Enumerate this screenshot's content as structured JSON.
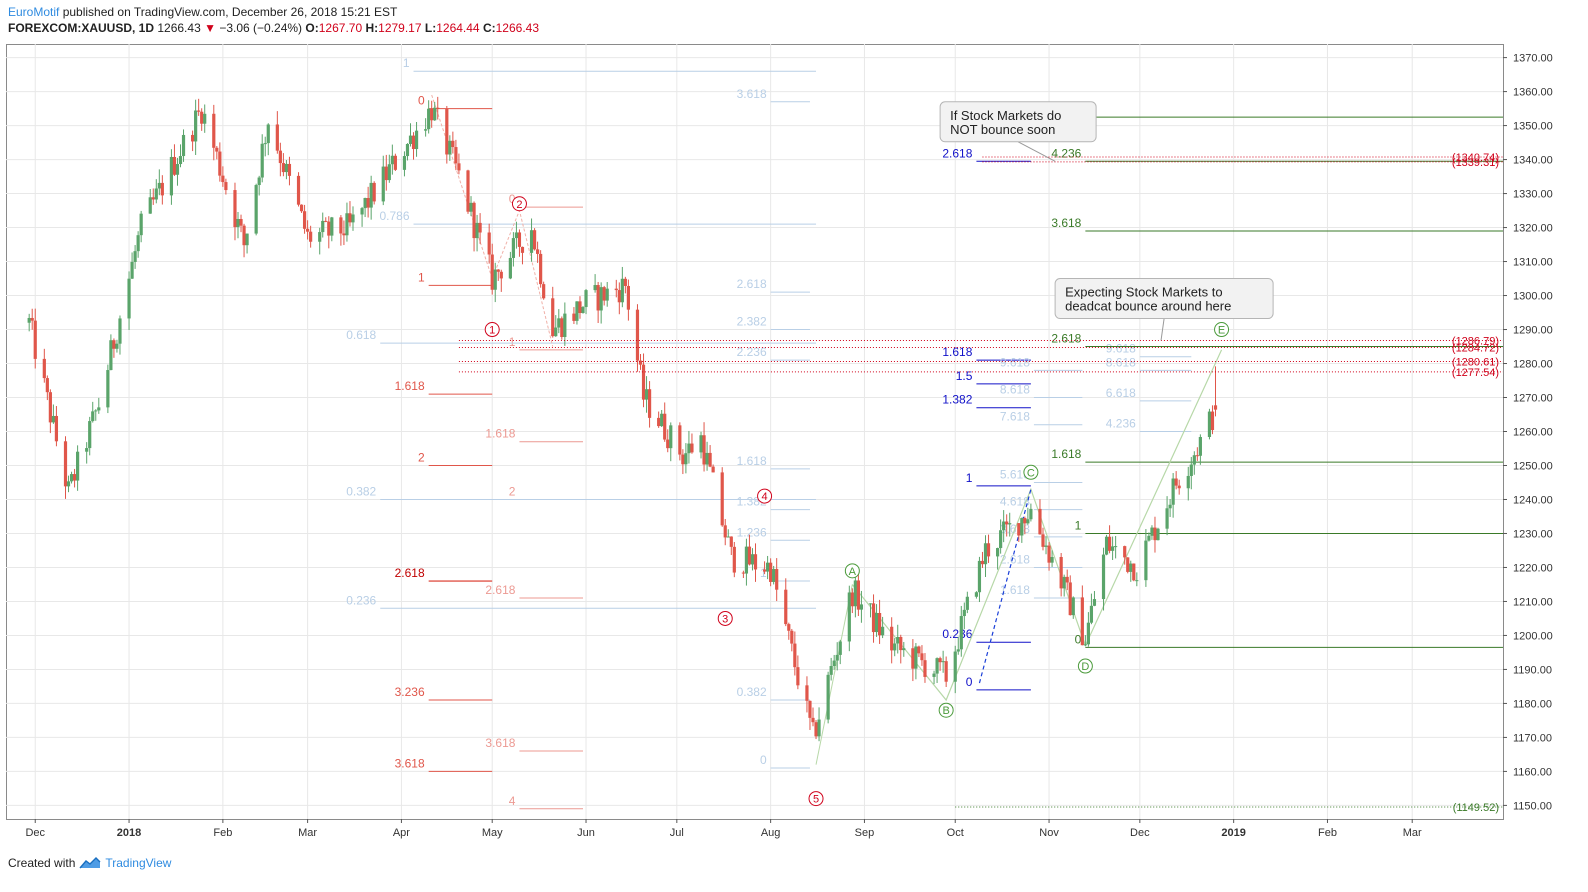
{
  "header": {
    "brand": "EuroMotif",
    "published": "published on TradingView.com, December 26, 2018 15:21 EST",
    "symbol": "FOREXCOM:XAUUSD, 1D",
    "last": "1266.43",
    "change_arrow": "▼",
    "change": "−3.06 (−0.24%)",
    "o_label": "O:",
    "o": "1267.70",
    "h_label": "H:",
    "h": "1279.17",
    "l_label": "L:",
    "l": "1264.44",
    "c_label": "C:",
    "c": "1266.43"
  },
  "footer": {
    "created_with": "Created with",
    "tv": "TradingView",
    "logo_icon": "tradingview-logo-icon"
  },
  "colors": {
    "up": "#5aa46a",
    "down": "#e0564a",
    "wave_red": "#e0564a",
    "fib_blue": "#1010c8",
    "fib_green": "#3a7a28",
    "fib_light": "#b9cfe6",
    "grid": "#e8e8e8"
  },
  "annotations": {
    "callout1": [
      "If Stock Markets do",
      "NOT bounce soon"
    ],
    "callout2": [
      "Expecting Stock Markets to",
      "deadcat bounce around here"
    ]
  },
  "chart_data": {
    "type": "candlestick",
    "symbol": "FOREXCOM:XAUUSD",
    "timeframe": "1D",
    "ylim": [
      1146,
      1374
    ],
    "x_tick_labels": [
      "Dec",
      "2018",
      "Feb",
      "Mar",
      "Apr",
      "May",
      "Jun",
      "Jul",
      "Aug",
      "Sep",
      "Oct",
      "Nov",
      "Dec",
      "2019",
      "Feb",
      "Mar"
    ],
    "y_tick_labels": [
      "1150.00",
      "1160.00",
      "1170.00",
      "1180.00",
      "1190.00",
      "1200.00",
      "1210.00",
      "1220.00",
      "1230.00",
      "1240.00",
      "1250.00",
      "1260.00",
      "1270.00",
      "1280.00",
      "1290.00",
      "1300.00",
      "1310.00",
      "1320.00",
      "1330.00",
      "1340.00",
      "1350.00",
      "1360.00",
      "1370.00"
    ],
    "price_waypoints": [
      {
        "date": "2017-11-29",
        "close": 1292
      },
      {
        "date": "2017-12-12",
        "close": 1242
      },
      {
        "date": "2017-12-22",
        "close": 1268
      },
      {
        "date": "2018-01-05",
        "close": 1320
      },
      {
        "date": "2018-01-25",
        "close": 1355
      },
      {
        "date": "2018-02-08",
        "close": 1315
      },
      {
        "date": "2018-02-16",
        "close": 1352
      },
      {
        "date": "2018-03-01",
        "close": 1317
      },
      {
        "date": "2018-03-15",
        "close": 1320
      },
      {
        "date": "2018-04-11",
        "close": 1355
      },
      {
        "date": "2018-04-20",
        "close": 1335
      },
      {
        "date": "2018-05-01",
        "close": 1305
      },
      {
        "date": "2018-05-14",
        "close": 1320
      },
      {
        "date": "2018-05-21",
        "close": 1290
      },
      {
        "date": "2018-06-01",
        "close": 1298
      },
      {
        "date": "2018-06-14",
        "close": 1303
      },
      {
        "date": "2018-06-20",
        "close": 1270
      },
      {
        "date": "2018-07-03",
        "close": 1253
      },
      {
        "date": "2018-07-09",
        "close": 1258
      },
      {
        "date": "2018-07-19",
        "close": 1223
      },
      {
        "date": "2018-08-01",
        "close": 1220
      },
      {
        "date": "2018-08-15",
        "close": 1170
      },
      {
        "date": "2018-08-28",
        "close": 1213
      },
      {
        "date": "2018-09-10",
        "close": 1197
      },
      {
        "date": "2018-09-28",
        "close": 1188
      },
      {
        "date": "2018-10-11",
        "close": 1225
      },
      {
        "date": "2018-10-26",
        "close": 1237
      },
      {
        "date": "2018-11-13",
        "close": 1199
      },
      {
        "date": "2018-11-20",
        "close": 1227
      },
      {
        "date": "2018-11-30",
        "close": 1220
      },
      {
        "date": "2018-12-13",
        "close": 1245
      },
      {
        "date": "2018-12-21",
        "close": 1257
      },
      {
        "date": "2018-12-26",
        "close": 1266.43
      }
    ],
    "last_bar": {
      "date": "2018-12-26",
      "open": 1267.7,
      "high": 1279.17,
      "low": 1264.44,
      "close": 1266.43
    },
    "wave_labels": [
      {
        "label": "1",
        "date": "2018-05-01",
        "price": 1290
      },
      {
        "label": "2",
        "date": "2018-05-10",
        "price": 1327
      },
      {
        "label": "3",
        "date": "2018-07-17",
        "price": 1205
      },
      {
        "label": "4",
        "date": "2018-07-30",
        "price": 1241
      },
      {
        "label": "5",
        "date": "2018-08-16",
        "price": 1152
      },
      {
        "label": "A",
        "date": "2018-08-28",
        "price": 1219
      },
      {
        "label": "B",
        "date": "2018-09-28",
        "price": 1178
      },
      {
        "label": "C",
        "date": "2018-10-26",
        "price": 1248
      },
      {
        "label": "D",
        "date": "2018-11-13",
        "price": 1191
      },
      {
        "label": "E",
        "date": "2018-12-28",
        "price": 1290
      }
    ],
    "price_levels": [
      {
        "value": "(1340.74)",
        "price": 1340.74
      },
      {
        "value": "(1339.31)",
        "price": 1339.31
      },
      {
        "value": "(1286.79)",
        "price": 1286.79
      },
      {
        "value": "(1284.72)",
        "price": 1284.72
      },
      {
        "value": "(1280.61)",
        "price": 1280.61
      },
      {
        "value": "(1277.54)",
        "price": 1277.54
      },
      {
        "value": "(1149.52)",
        "price": 1149.52
      }
    ],
    "fib_sets": [
      {
        "color": "wave_red",
        "levels": [
          {
            "label": "0",
            "price": 1355,
            "from": "2018-04-10",
            "to": "2018-05-01"
          },
          {
            "label": "1",
            "price": 1303,
            "from": "2018-04-10",
            "to": "2018-05-01"
          },
          {
            "label": "1.618",
            "price": 1271,
            "from": "2018-04-10",
            "to": "2018-05-01"
          },
          {
            "label": "2",
            "price": 1250,
            "from": "2018-04-10",
            "to": "2018-05-01"
          },
          {
            "label": "2.618",
            "price": 1216,
            "from": "2018-04-10",
            "to": "2018-05-01",
            "strong": true
          },
          {
            "label": "3.236",
            "price": 1181,
            "from": "2018-04-10",
            "to": "2018-05-01"
          },
          {
            "label": "3.618",
            "price": 1160,
            "from": "2018-04-10",
            "to": "2018-05-01"
          }
        ]
      },
      {
        "color": "wave_red",
        "faint": true,
        "levels": [
          {
            "label": "0",
            "price": 1326,
            "from": "2018-05-10",
            "to": "2018-05-31"
          },
          {
            "label": "1",
            "price": 1284,
            "from": "2018-05-10",
            "to": "2018-05-31"
          },
          {
            "label": "1.618",
            "price": 1257,
            "from": "2018-05-10",
            "to": "2018-05-31"
          },
          {
            "label": "2",
            "price": 1240,
            "from": "2018-05-10",
            "to": "2018-05-31"
          },
          {
            "label": "2.618",
            "price": 1211,
            "from": "2018-05-10",
            "to": "2018-05-31"
          },
          {
            "label": "3.618",
            "price": 1166,
            "from": "2018-05-10",
            "to": "2018-05-31"
          },
          {
            "label": "4",
            "price": 1149,
            "from": "2018-05-10",
            "to": "2018-05-31"
          }
        ]
      },
      {
        "color": "fib_light",
        "levels": [
          {
            "label": "1",
            "price": 1366,
            "from": "2018-04-05",
            "to": "2018-08-16"
          },
          {
            "label": "0.786",
            "price": 1321,
            "from": "2018-04-05",
            "to": "2018-08-16"
          },
          {
            "label": "0.618",
            "price": 1286,
            "from": "2018-03-25",
            "to": "2018-08-16"
          },
          {
            "label": "0.382",
            "price": 1240,
            "from": "2018-03-25",
            "to": "2018-08-16"
          },
          {
            "label": "0.236",
            "price": 1208,
            "from": "2018-03-25",
            "to": "2018-08-16"
          }
        ]
      },
      {
        "color": "fib_light",
        "levels": [
          {
            "label": "3.618",
            "price": 1357,
            "from": "2018-08-01",
            "to": "2018-08-14"
          },
          {
            "label": "2.618",
            "price": 1301,
            "from": "2018-08-01",
            "to": "2018-08-14"
          },
          {
            "label": "2.382",
            "price": 1290,
            "from": "2018-08-01",
            "to": "2018-08-14"
          },
          {
            "label": "2.236",
            "price": 1281,
            "from": "2018-08-01",
            "to": "2018-08-14"
          },
          {
            "label": "1.618",
            "price": 1249,
            "from": "2018-08-01",
            "to": "2018-08-14"
          },
          {
            "label": "1.382",
            "price": 1237,
            "from": "2018-08-01",
            "to": "2018-08-14"
          },
          {
            "label": "1.236",
            "price": 1228,
            "from": "2018-08-01",
            "to": "2018-08-14"
          },
          {
            "label": "1",
            "price": 1216,
            "from": "2018-08-01",
            "to": "2018-08-14"
          },
          {
            "label": "0.382",
            "price": 1181,
            "from": "2018-08-01",
            "to": "2018-08-14"
          },
          {
            "label": "0",
            "price": 1161,
            "from": "2018-08-01",
            "to": "2018-08-14"
          }
        ]
      },
      {
        "color": "fib_blue",
        "levels": [
          {
            "label": "2.618",
            "price": 1339.5,
            "from": "2018-10-08",
            "to": "2018-10-26"
          },
          {
            "label": "1.618",
            "price": 1281,
            "from": "2018-10-08",
            "to": "2018-10-26"
          },
          {
            "label": "1.5",
            "price": 1274,
            "from": "2018-10-08",
            "to": "2018-10-26"
          },
          {
            "label": "1.382",
            "price": 1267,
            "from": "2018-10-08",
            "to": "2018-10-26"
          },
          {
            "label": "1",
            "price": 1244,
            "from": "2018-10-08",
            "to": "2018-10-26"
          },
          {
            "label": "0.236",
            "price": 1198,
            "from": "2018-10-08",
            "to": "2018-10-26"
          },
          {
            "label": "0",
            "price": 1184,
            "from": "2018-10-08",
            "to": "2018-10-26"
          }
        ]
      },
      {
        "color": "fib_light",
        "levels": [
          {
            "label": "9.618",
            "price": 1278,
            "from": "2018-10-27",
            "to": "2018-11-12"
          },
          {
            "label": "8.618",
            "price": 1270,
            "from": "2018-10-27",
            "to": "2018-11-12"
          },
          {
            "label": "7.618",
            "price": 1262,
            "from": "2018-10-27",
            "to": "2018-11-12"
          },
          {
            "label": "5.618",
            "price": 1245,
            "from": "2018-10-27",
            "to": "2018-11-12"
          },
          {
            "label": "4.618",
            "price": 1237,
            "from": "2018-10-27",
            "to": "2018-11-12"
          },
          {
            "label": "3.618",
            "price": 1229,
            "from": "2018-10-27",
            "to": "2018-11-12"
          },
          {
            "label": "2.618",
            "price": 1220,
            "from": "2018-10-27",
            "to": "2018-11-12"
          },
          {
            "label": "1.618",
            "price": 1211,
            "from": "2018-10-27",
            "to": "2018-11-12"
          }
        ]
      },
      {
        "color": "fib_light",
        "levels": [
          {
            "label": "9.618",
            "price": 1282,
            "from": "2018-12-01",
            "to": "2018-12-18"
          },
          {
            "label": "8.618",
            "price": 1278,
            "from": "2018-12-01",
            "to": "2018-12-18"
          },
          {
            "label": "6.618",
            "price": 1269,
            "from": "2018-12-01",
            "to": "2018-12-18"
          },
          {
            "label": "4.236",
            "price": 1260,
            "from": "2018-12-01",
            "to": "2018-12-18"
          }
        ]
      },
      {
        "color": "fib_green",
        "levels": [
          {
            "label": "4.618",
            "price": 1352.5,
            "from": "2018-11-13",
            "to": "2019-03-31"
          },
          {
            "label": "4.236",
            "price": 1339.5,
            "from": "2018-11-13",
            "to": "2019-03-31"
          },
          {
            "label": "3.618",
            "price": 1319,
            "from": "2018-11-13",
            "to": "2019-03-31"
          },
          {
            "label": "2.618",
            "price": 1285,
            "from": "2018-11-13",
            "to": "2019-03-31"
          },
          {
            "label": "1.618",
            "price": 1251,
            "from": "2018-11-13",
            "to": "2019-03-31"
          },
          {
            "label": "1",
            "price": 1230,
            "from": "2018-11-13",
            "to": "2019-03-31"
          },
          {
            "label": "0",
            "price": 1196.5,
            "from": "2018-11-13",
            "to": "2019-03-31"
          }
        ]
      }
    ]
  }
}
